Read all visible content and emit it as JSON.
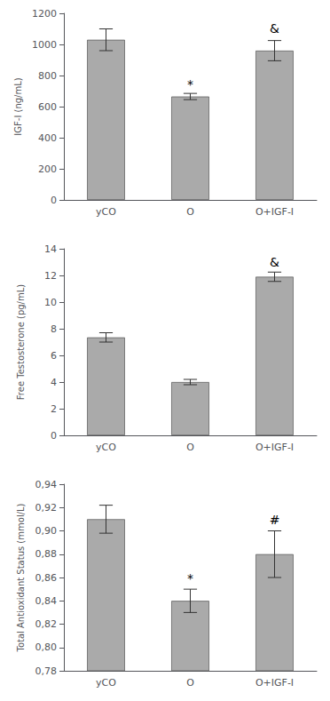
{
  "chart_data": [
    {
      "type": "bar",
      "categories": [
        "yCO",
        "O",
        "O+IGF-I"
      ],
      "values": [
        1030,
        665,
        960
      ],
      "errors": [
        70,
        20,
        65
      ],
      "color": "#aaaaaa",
      "ylabel": "IGF-I (ng/mL)",
      "ylim": [
        0,
        1200
      ],
      "yticks": [
        0,
        200,
        400,
        600,
        800,
        1000,
        1200
      ],
      "grid": false,
      "annotations": [
        {
          "text": "*",
          "x": "O",
          "y": 705
        },
        {
          "text": "&",
          "x": "O+IGF-I",
          "y": 1062
        }
      ]
    },
    {
      "type": "bar",
      "categories": [
        "yCO",
        "O",
        "O+IGF-I"
      ],
      "values": [
        7.35,
        4.0,
        11.9
      ],
      "errors": [
        0.35,
        0.2,
        0.35
      ],
      "color": "#aaaaaa",
      "ylabel": "Free Testosterone (pg/mL)",
      "ylim": [
        0,
        14
      ],
      "yticks": [
        0,
        2,
        4,
        6,
        8,
        10,
        12,
        14
      ],
      "grid": false,
      "annotations": [
        {
          "text": "&",
          "x": "O+IGF-I",
          "y": 12.55
        }
      ]
    },
    {
      "type": "bar",
      "categories": [
        "yCO",
        "O",
        "O+IGF-I"
      ],
      "values": [
        0.91,
        0.84,
        0.88
      ],
      "errors": [
        0.012,
        0.01,
        0.02
      ],
      "color": "#aaaaaa",
      "ylabel": "Total Antioxidant Status (mmol/L)",
      "ylim": [
        0.78,
        0.94
      ],
      "yticks": [
        {
          "value": 0.78,
          "label": "0,78"
        },
        {
          "value": 0.8,
          "label": "0,80"
        },
        {
          "value": 0.82,
          "label": "0,82"
        },
        {
          "value": 0.84,
          "label": "0,84"
        },
        {
          "value": 0.86,
          "label": "0,86"
        },
        {
          "value": 0.88,
          "label": "0,88"
        },
        {
          "value": 0.9,
          "label": "0,90"
        },
        {
          "value": 0.92,
          "label": "0,92"
        },
        {
          "value": 0.94,
          "label": "0,94"
        }
      ],
      "grid": false,
      "annotations": [
        {
          "text": "*",
          "x": "O",
          "y": 0.854
        },
        {
          "text": "#",
          "x": "O+IGF-I",
          "y": 0.904
        }
      ]
    }
  ]
}
